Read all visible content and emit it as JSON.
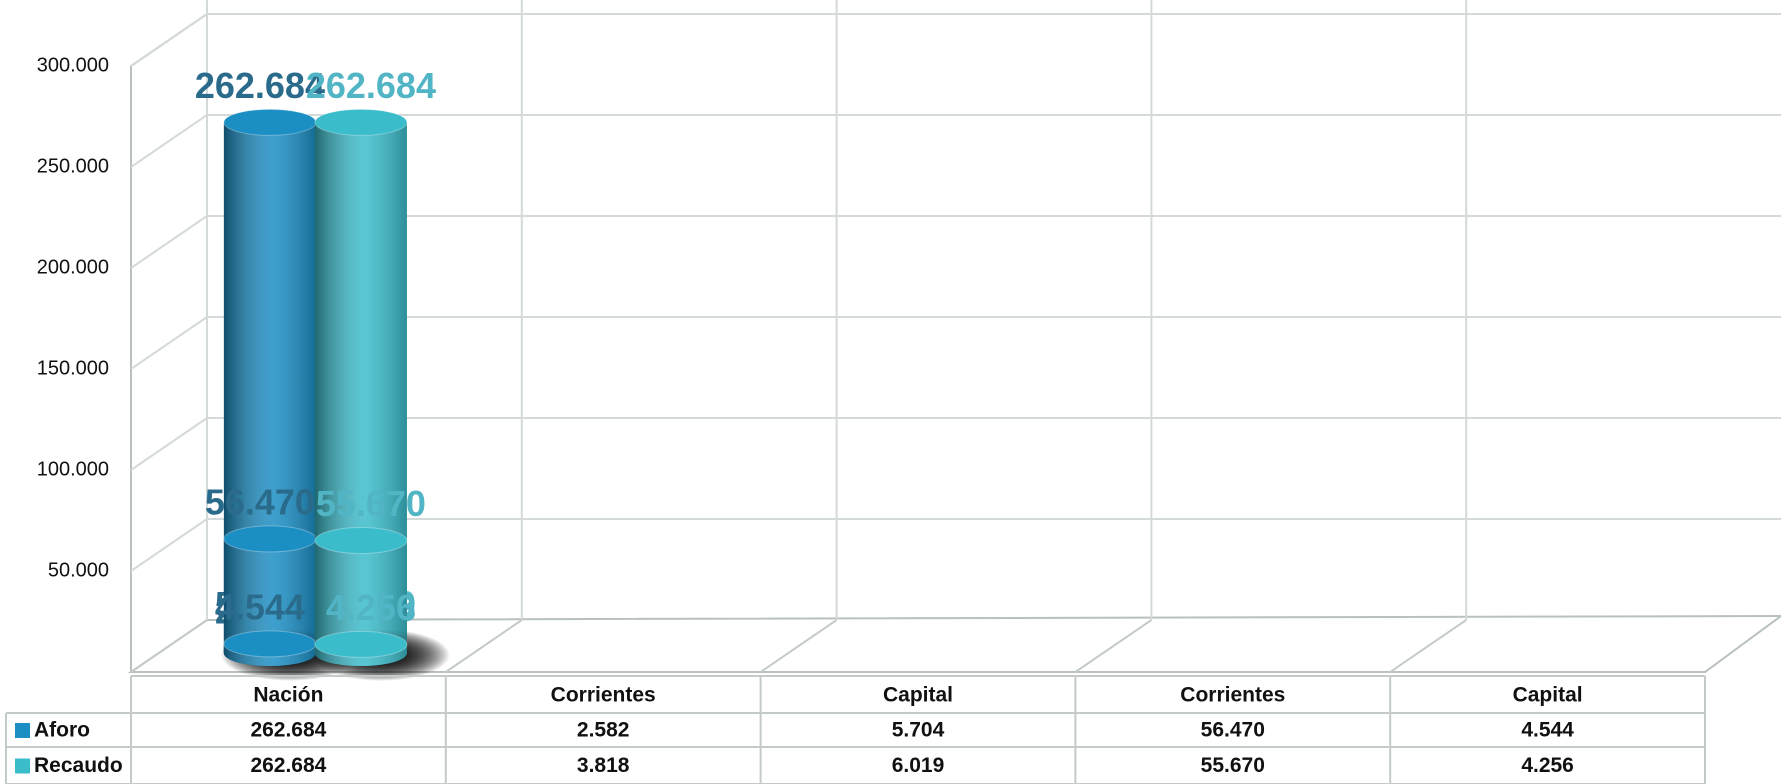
{
  "chart_data": {
    "type": "bar",
    "categories": [
      "Nación",
      "Corrientes",
      "Capital",
      "Corrientes",
      "Capital"
    ],
    "series": [
      {
        "name": "Aforo",
        "color": "#1b8ec4",
        "label_color": "#2a6b8c",
        "values": [
          262684,
          2582,
          5704,
          56470,
          4544
        ],
        "value_labels": [
          "262.684",
          "2.582",
          "5.704",
          "56.470",
          "4.544"
        ]
      },
      {
        "name": "Recaudo",
        "color": "#3bbccb",
        "label_color": "#52b5c6",
        "values": [
          262684,
          3818,
          6019,
          55670,
          4256
        ],
        "value_labels": [
          "262.684",
          "3.818",
          "6.019",
          "55.670",
          "4.256"
        ]
      }
    ],
    "ylim": [
      0,
      300000
    ],
    "yticks": [
      {
        "value": 50000,
        "label": "50.000"
      },
      {
        "value": 100000,
        "label": "100.000"
      },
      {
        "value": 150000,
        "label": "150.000"
      },
      {
        "value": 200000,
        "label": "200.000"
      },
      {
        "value": 250000,
        "label": "250.000"
      },
      {
        "value": 300000,
        "label": "300.000"
      }
    ],
    "grid": true
  }
}
